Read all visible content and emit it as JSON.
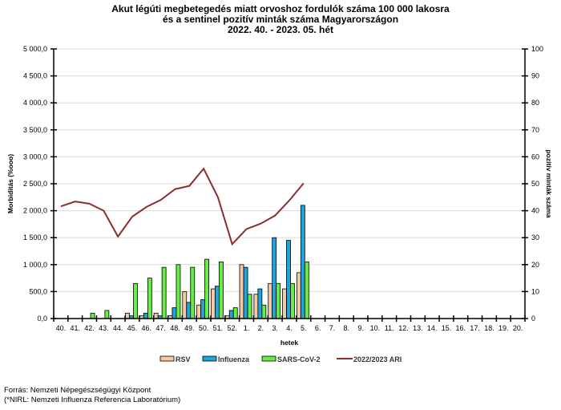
{
  "chart_data": {
    "type": "bar",
    "title_lines": [
      "Akut légúti megbetegedés miatt orvoshoz fordulók száma 100 000 lakosra",
      "és a sentinel pozitív minták száma Magyarországon",
      "2022. 40. - 2023. 05. hét"
    ],
    "xlabel": "hetek",
    "ylabel_left": "Morbiditás (%ooo)",
    "ylabel_right": "pozitív minták száma",
    "ylim_left": [
      0,
      5000
    ],
    "ylim_right": [
      0,
      100
    ],
    "yticks_left": [
      "0,0",
      "500,0",
      "1 000,0",
      "1 500,0",
      "2 000,0",
      "2 500,0",
      "3 000,0",
      "3 500,0",
      "4 000,0",
      "4 500,0",
      "5 000,0"
    ],
    "yticks_right": [
      "0",
      "10",
      "20",
      "30",
      "40",
      "50",
      "60",
      "70",
      "80",
      "90",
      "100"
    ],
    "grid": true,
    "legend_position": "bottom",
    "categories": [
      "40.",
      "41.",
      "42.",
      "43.",
      "44.",
      "45.",
      "46.",
      "47.",
      "48.",
      "49.",
      "50.",
      "51.",
      "52.",
      "1.",
      "2.",
      "3.",
      "4.",
      "5.",
      "6.",
      "7.",
      "8.",
      "9.",
      "10.",
      "11.",
      "12.",
      "13.",
      "14.",
      "15.",
      "16.",
      "17.",
      "18.",
      "19.",
      "20."
    ],
    "series": [
      {
        "name": "RSV",
        "type": "bar",
        "axis": "right",
        "color": "#f5c9a6",
        "values": [
          0,
          0,
          0,
          0,
          0,
          2,
          1,
          2,
          1,
          10,
          5,
          11,
          1,
          20,
          9,
          13,
          11,
          17,
          null,
          null,
          null,
          null,
          null,
          null,
          null,
          null,
          null,
          null,
          null,
          null,
          null,
          null,
          null
        ]
      },
      {
        "name": "Influenza",
        "type": "bar",
        "axis": "right",
        "color": "#1ea5dc",
        "values": [
          0,
          0,
          0,
          0,
          0,
          1,
          2,
          1,
          4,
          6,
          7,
          12,
          3,
          19,
          11,
          30,
          29,
          42,
          null,
          null,
          null,
          null,
          null,
          null,
          null,
          null,
          null,
          null,
          null,
          null,
          null,
          null,
          null
        ]
      },
      {
        "name": "SARS-CoV-2",
        "type": "bar",
        "axis": "right",
        "color": "#66ee44",
        "values": [
          0,
          0,
          2,
          3,
          0,
          13,
          15,
          19,
          20,
          19,
          22,
          21,
          4,
          9,
          5,
          13,
          13,
          21,
          null,
          null,
          null,
          null,
          null,
          null,
          null,
          null,
          null,
          null,
          null,
          null,
          null,
          null,
          null
        ]
      },
      {
        "name": "2022/2023 ARI",
        "type": "line",
        "axis": "left",
        "color": "#8b2e2e",
        "values": [
          2080,
          2170,
          2130,
          2000,
          1520,
          1890,
          2070,
          2200,
          2400,
          2460,
          2780,
          2250,
          1380,
          1660,
          1760,
          1910,
          2190,
          2510,
          null,
          null,
          null,
          null,
          null,
          null,
          null,
          null,
          null,
          null,
          null,
          null,
          null,
          null,
          null
        ]
      }
    ]
  },
  "footer": {
    "source": "Forrás: Nemzeti Népegészségügyi Központ",
    "note": "(*NIRL: Nemzeti Influenza Referencia Laboratórium)"
  }
}
